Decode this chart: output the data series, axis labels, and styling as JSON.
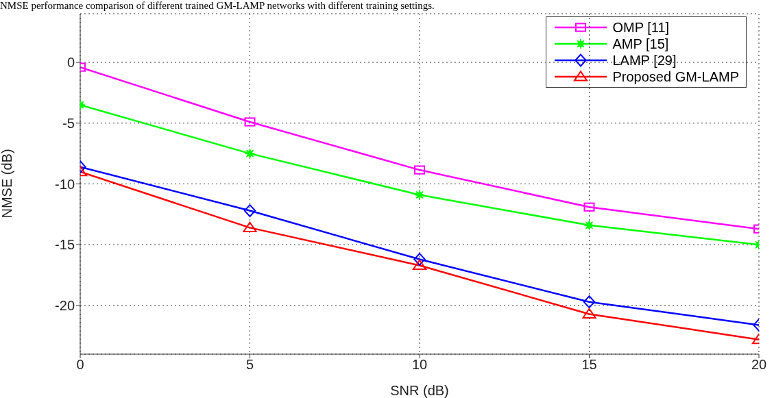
{
  "chart_data": {
    "type": "line",
    "title": "NMSE performance comparison of different trained GM-LAMP networks with different training settings.",
    "xlabel": "SNR (dB)",
    "ylabel": "NMSE (dB)",
    "x": [
      0,
      5,
      10,
      15,
      20
    ],
    "xlim": [
      0,
      20
    ],
    "xticks": [
      0,
      5,
      10,
      15,
      20
    ],
    "ylim": [
      -24,
      4
    ],
    "yticks": [
      -20,
      -15,
      -10,
      -5,
      0
    ],
    "grid": true,
    "legend": "top right",
    "line_style": "solid",
    "series": [
      {
        "name": "OMP [11]",
        "color": "#ff00ff",
        "marker": "square",
        "values": [
          -0.4,
          -4.9,
          -8.85,
          -11.9,
          -13.7
        ]
      },
      {
        "name": "AMP [15]",
        "color": "#00ff00",
        "marker": "star",
        "values": [
          -3.5,
          -7.5,
          -10.9,
          -13.4,
          -15.0
        ]
      },
      {
        "name": "LAMP [29]",
        "color": "#0000ff",
        "marker": "diamond",
        "values": [
          -8.6,
          -12.2,
          -16.2,
          -19.7,
          -21.6
        ]
      },
      {
        "name": "Proposed GM-LAMP",
        "color": "#ff0000",
        "marker": "triangle",
        "values": [
          -9.0,
          -13.6,
          -16.7,
          -20.7,
          -22.8
        ]
      }
    ]
  }
}
